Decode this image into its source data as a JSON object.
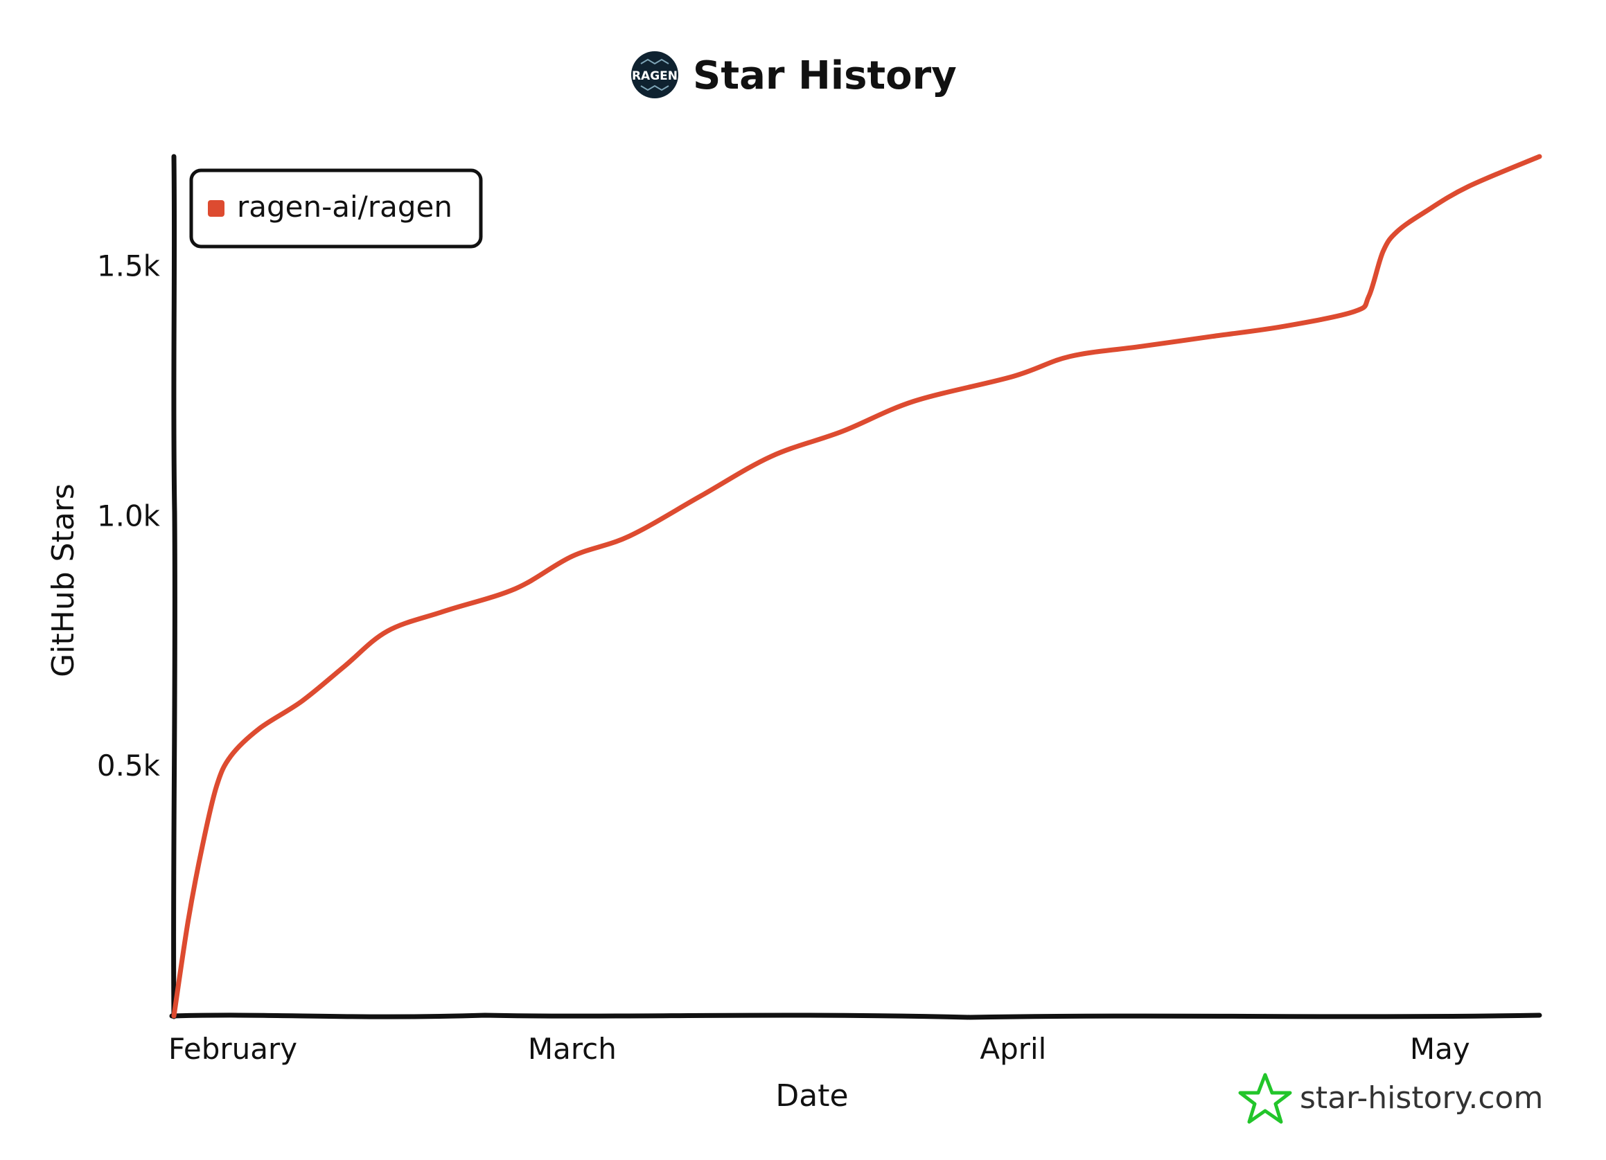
{
  "colors": {
    "series": "#dd4b30",
    "axis": "#111111",
    "watermark_icon": "#22c52a",
    "logo_bg": "#0f2230"
  },
  "title": "Star History",
  "logo_text": "RAGEN",
  "watermark": "star-history.com",
  "icons": {
    "logo": "ragen-logo-icon",
    "watermark": "star-outline-icon"
  },
  "chart_data": {
    "type": "line",
    "title": "Star History",
    "xlabel": "Date",
    "ylabel": "GitHub Stars",
    "x_tick_labels": [
      "February",
      "March",
      "April",
      "May"
    ],
    "x_tick_dates": [
      "2025-02-01",
      "2025-03-01",
      "2025-04-01",
      "2025-05-01"
    ],
    "xlim": [
      "2025-02-01",
      "2025-05-08"
    ],
    "y_tick_values": [
      500,
      1000,
      1500
    ],
    "y_tick_labels": [
      "0.5k",
      "1.0k",
      "1.5k"
    ],
    "ylim": [
      0,
      1720
    ],
    "grid": false,
    "legend_position": "top-left",
    "series": [
      {
        "name": "ragen-ai/ragen",
        "x": [
          "2025-02-01",
          "2025-02-02",
          "2025-02-03",
          "2025-02-04",
          "2025-02-05",
          "2025-02-07",
          "2025-02-10",
          "2025-02-13",
          "2025-02-16",
          "2025-02-20",
          "2025-02-25",
          "2025-03-01",
          "2025-03-05",
          "2025-03-10",
          "2025-03-15",
          "2025-03-20",
          "2025-03-25",
          "2025-04-01",
          "2025-04-05",
          "2025-04-10",
          "2025-04-15",
          "2025-04-20",
          "2025-04-25",
          "2025-04-26",
          "2025-04-27",
          "2025-04-28",
          "2025-04-30",
          "2025-05-03",
          "2025-05-08"
        ],
        "y": [
          0,
          190,
          340,
          460,
          520,
          575,
          630,
          700,
          770,
          810,
          855,
          920,
          960,
          1040,
          1120,
          1170,
          1230,
          1280,
          1320,
          1340,
          1360,
          1380,
          1410,
          1440,
          1530,
          1570,
          1610,
          1660,
          1720
        ]
      }
    ]
  }
}
